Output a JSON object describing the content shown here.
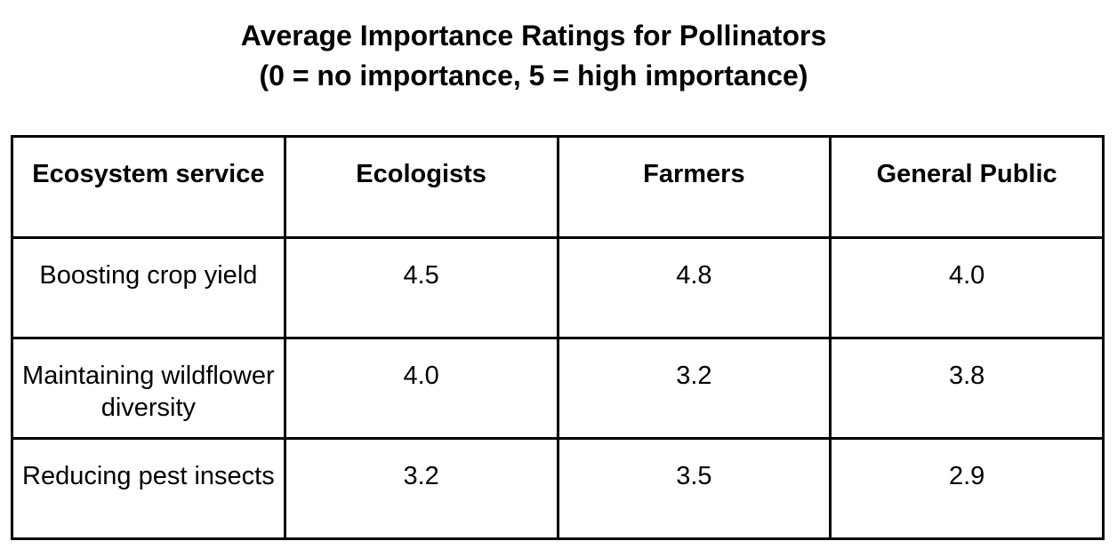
{
  "chart_data": {
    "type": "table",
    "title": "Average Importance Ratings for Pollinators",
    "subtitle": "(0 = no importance, 5 = high importance)",
    "columns": [
      "Ecosystem service",
      "Ecologists",
      "Farmers",
      "General Public"
    ],
    "rows": [
      {
        "service": "Boosting crop yield",
        "values": [
          "4.5",
          "4.8",
          "4.0"
        ]
      },
      {
        "service": "Maintaining wildflower diversity",
        "values": [
          "4.0",
          "3.2",
          "3.8"
        ]
      },
      {
        "service": "Reducing pest insects",
        "values": [
          "3.2",
          "3.5",
          "2.9"
        ]
      }
    ]
  }
}
